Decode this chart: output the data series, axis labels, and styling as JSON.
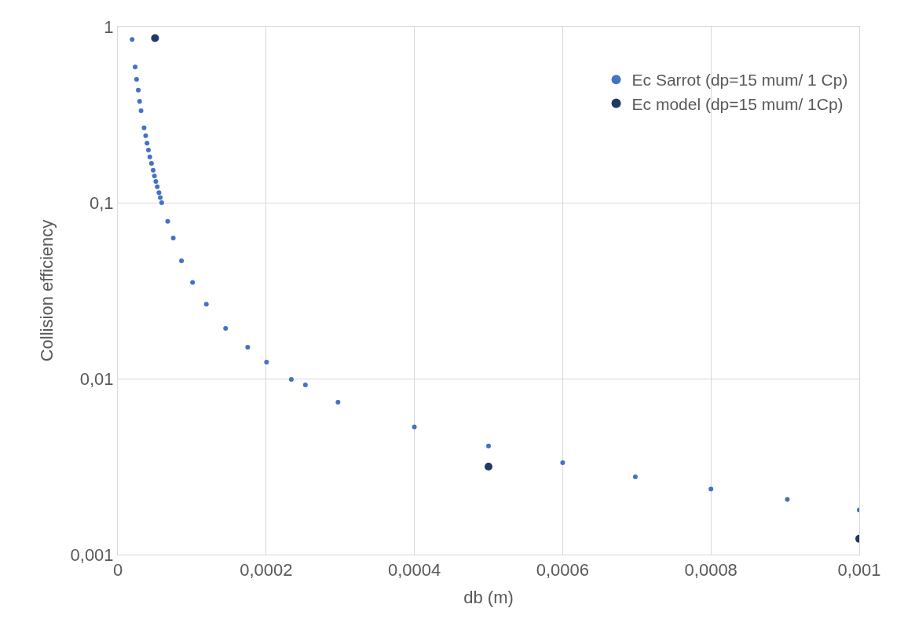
{
  "chart_data": {
    "type": "scatter",
    "xlabel": "db (m)",
    "ylabel": "Collision efficiency",
    "log": "y",
    "grid": true,
    "legend": "top right",
    "marker": "circle",
    "xlim": [
      0,
      0.001
    ],
    "xticks": [
      0,
      {
        "value": 0.0002,
        "label": "0,0002"
      },
      {
        "value": 0.0004,
        "label": "0,0004"
      },
      {
        "value": 0.0006,
        "label": "0,0006"
      },
      {
        "value": 0.0008,
        "label": "0,0008"
      },
      {
        "value": 0.001,
        "label": "0,001"
      }
    ],
    "ylim": [
      0.001,
      1
    ],
    "yticks": [
      {
        "value": 0.001,
        "label": "0,001"
      },
      {
        "value": 0.01,
        "label": "0,01"
      },
      {
        "value": 0.1,
        "label": "0,1"
      },
      1
    ],
    "series": [
      {
        "name": "Ec Sarrot (dp=15 mum/ 1 Cp)",
        "color": "#4472c4",
        "x": [
          1.93e-05,
          2.34e-05,
          2.53e-05,
          2.76e-05,
          2.94e-05,
          3.13e-05,
          3.54e-05,
          3.76e-05,
          3.94e-05,
          4.13e-05,
          4.32e-05,
          4.54e-05,
          4.77e-05,
          4.94e-05,
          5.13e-05,
          5.32e-05,
          5.55e-05,
          5.73e-05,
          5.92e-05,
          6.73e-05,
          7.48e-05,
          8.59e-05,
          0.0001008,
          0.0001194,
          0.0001454,
          0.0001752,
          0.0002006,
          0.000234,
          0.000253,
          0.000297,
          0.0004,
          0.0005,
          0.0006,
          0.000698,
          0.0008,
          0.000903,
          0.001
        ],
        "values": [
          0.847,
          0.59,
          0.502,
          0.436,
          0.377,
          0.333,
          0.266,
          0.24,
          0.218,
          0.199,
          0.182,
          0.167,
          0.153,
          0.142,
          0.132,
          0.123,
          0.114,
          0.107,
          0.1,
          0.0784,
          0.063,
          0.0467,
          0.0352,
          0.0265,
          0.0193,
          0.0151,
          0.0124,
          0.0099,
          0.0092,
          0.00735,
          0.00531,
          0.00414,
          0.00333,
          0.00277,
          0.00236,
          0.00206,
          0.00179
        ]
      },
      {
        "name": "Ec model (dp=15 mum/ 1Cp)",
        "color": "#203864",
        "x": [
          5.02e-05,
          0.0005,
          0.001
        ],
        "values": [
          0.862,
          0.00316,
          0.00123
        ]
      }
    ]
  }
}
